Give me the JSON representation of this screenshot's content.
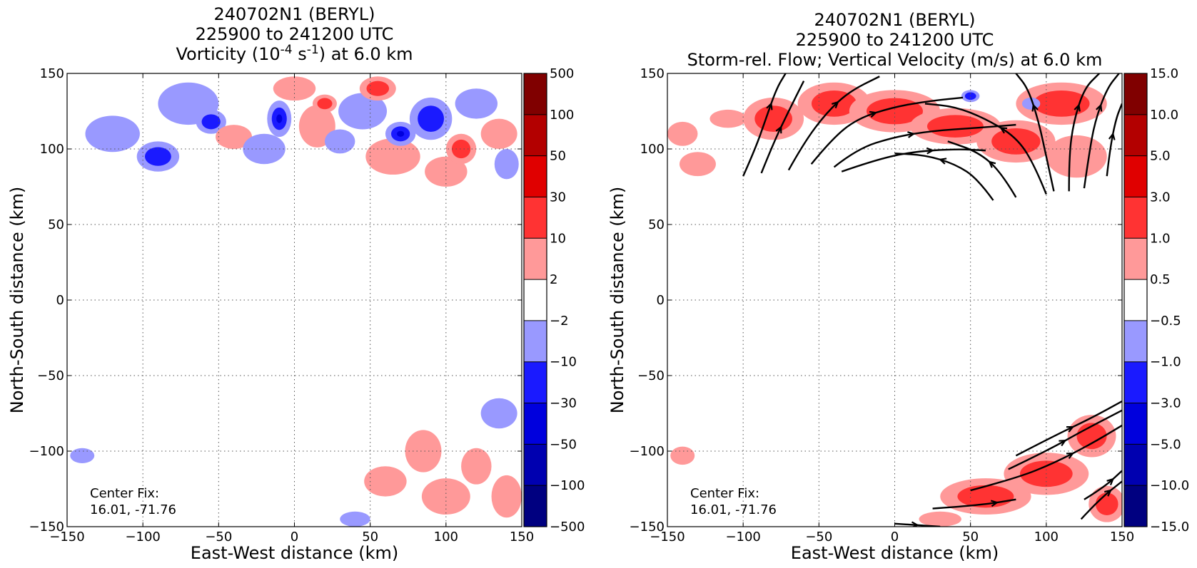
{
  "chart_data": [
    {
      "type": "heatmap",
      "title_lines": [
        "240702N1 (BERYL)",
        "225900 to 241200 UTC"
      ],
      "title_main": "Vorticity (10",
      "title_sup1": "-4",
      "title_mid": " s",
      "title_sup2": "-1",
      "title_tail": ") at 6.0 km",
      "xlabel": "East-West distance (km)",
      "ylabel": "North-South distance (km)",
      "xlim": [
        -150,
        150
      ],
      "ylim": [
        -150,
        150
      ],
      "x_ticks": [
        -150,
        -100,
        -50,
        0,
        50,
        100,
        150
      ],
      "y_ticks": [
        -150,
        -100,
        -50,
        0,
        50,
        100,
        150
      ],
      "x_tick_labels": [
        "−150",
        "−100",
        "−50",
        "0",
        "50",
        "100",
        "150"
      ],
      "y_tick_labels": [
        "−150",
        "−100",
        "−50",
        "0",
        "50",
        "100",
        "150"
      ],
      "grid": true,
      "annotation": [
        "Center Fix:",
        "16.01, -71.76"
      ],
      "colorbar_levels": [
        "−500",
        "−100",
        "−50",
        "−30",
        "−10",
        "−2",
        "2",
        "10",
        "30",
        "50",
        "100",
        "500"
      ],
      "colorbar_colors": [
        "#000080",
        "#0000b0",
        "#0000dd",
        "#1a1aff",
        "#9999ff",
        "#ffffff",
        "#ff9999",
        "#ff3333",
        "#e00000",
        "#b30000",
        "#800000"
      ],
      "blobs": [
        {
          "x": -120,
          "y": 110,
          "rx": 18,
          "ry": 12,
          "sign": -1,
          "level": 1
        },
        {
          "x": -90,
          "y": 95,
          "rx": 14,
          "ry": 10,
          "sign": -1,
          "level": 2
        },
        {
          "x": -70,
          "y": 130,
          "rx": 20,
          "ry": 14,
          "sign": -1,
          "level": 1
        },
        {
          "x": -55,
          "y": 118,
          "rx": 10,
          "ry": 8,
          "sign": -1,
          "level": 2
        },
        {
          "x": -40,
          "y": 108,
          "rx": 12,
          "ry": 8,
          "sign": 1,
          "level": 1
        },
        {
          "x": -20,
          "y": 100,
          "rx": 14,
          "ry": 10,
          "sign": -1,
          "level": 1
        },
        {
          "x": -10,
          "y": 120,
          "rx": 8,
          "ry": 12,
          "sign": -1,
          "level": 3
        },
        {
          "x": 0,
          "y": 140,
          "rx": 14,
          "ry": 8,
          "sign": 1,
          "level": 1
        },
        {
          "x": 15,
          "y": 115,
          "rx": 12,
          "ry": 14,
          "sign": 1,
          "level": 1
        },
        {
          "x": 20,
          "y": 130,
          "rx": 8,
          "ry": 6,
          "sign": 1,
          "level": 2
        },
        {
          "x": 30,
          "y": 105,
          "rx": 10,
          "ry": 8,
          "sign": -1,
          "level": 1
        },
        {
          "x": 45,
          "y": 125,
          "rx": 16,
          "ry": 12,
          "sign": -1,
          "level": 1
        },
        {
          "x": 55,
          "y": 140,
          "rx": 12,
          "ry": 8,
          "sign": 1,
          "level": 2
        },
        {
          "x": 65,
          "y": 95,
          "rx": 18,
          "ry": 12,
          "sign": 1,
          "level": 1
        },
        {
          "x": 70,
          "y": 110,
          "rx": 10,
          "ry": 8,
          "sign": -1,
          "level": 3
        },
        {
          "x": 90,
          "y": 120,
          "rx": 14,
          "ry": 14,
          "sign": -1,
          "level": 2
        },
        {
          "x": 100,
          "y": 85,
          "rx": 14,
          "ry": 10,
          "sign": 1,
          "level": 1
        },
        {
          "x": 110,
          "y": 100,
          "rx": 10,
          "ry": 10,
          "sign": 1,
          "level": 2
        },
        {
          "x": 120,
          "y": 130,
          "rx": 14,
          "ry": 10,
          "sign": -1,
          "level": 1
        },
        {
          "x": 135,
          "y": 110,
          "rx": 12,
          "ry": 10,
          "sign": 1,
          "level": 1
        },
        {
          "x": 140,
          "y": 90,
          "rx": 8,
          "ry": 10,
          "sign": -1,
          "level": 1
        },
        {
          "x": -140,
          "y": -103,
          "rx": 8,
          "ry": 5,
          "sign": -1,
          "level": 1
        },
        {
          "x": 60,
          "y": -120,
          "rx": 14,
          "ry": 10,
          "sign": 1,
          "level": 1
        },
        {
          "x": 85,
          "y": -100,
          "rx": 12,
          "ry": 14,
          "sign": 1,
          "level": 1
        },
        {
          "x": 100,
          "y": -130,
          "rx": 16,
          "ry": 12,
          "sign": 1,
          "level": 1
        },
        {
          "x": 120,
          "y": -110,
          "rx": 10,
          "ry": 12,
          "sign": 1,
          "level": 1
        },
        {
          "x": 135,
          "y": -75,
          "rx": 12,
          "ry": 10,
          "sign": -1,
          "level": 1
        },
        {
          "x": 140,
          "y": -130,
          "rx": 10,
          "ry": 14,
          "sign": 1,
          "level": 1
        },
        {
          "x": 40,
          "y": -145,
          "rx": 10,
          "ry": 5,
          "sign": -1,
          "level": 1
        }
      ]
    },
    {
      "type": "heatmap",
      "title_lines": [
        "240702N1 (BERYL)",
        "225900 to 241200 UTC",
        "Storm-rel. Flow; Vertical Velocity (m/s) at 6.0 km"
      ],
      "xlabel": "East-West distance (km)",
      "ylabel": "North-South distance (km)",
      "xlim": [
        -150,
        150
      ],
      "ylim": [
        -150,
        150
      ],
      "x_ticks": [
        -150,
        -100,
        -50,
        0,
        50,
        100,
        150
      ],
      "y_ticks": [
        -150,
        -100,
        -50,
        0,
        50,
        100,
        150
      ],
      "x_tick_labels": [
        "−150",
        "−100",
        "−50",
        "0",
        "50",
        "100",
        "150"
      ],
      "y_tick_labels": [
        "−150",
        "−100",
        "−50",
        "0",
        "50",
        "100",
        "150"
      ],
      "grid": true,
      "annotation": [
        "Center Fix:",
        "16.01, -71.76"
      ],
      "colorbar_levels": [
        "−15.0",
        "−10.0",
        "−5.0",
        "−3.0",
        "−1.0",
        "−0.5",
        "0.5",
        "1.0",
        "3.0",
        "5.0",
        "10.0",
        "15.0"
      ],
      "colorbar_colors": [
        "#000080",
        "#0000b0",
        "#0000dd",
        "#1a1aff",
        "#9999ff",
        "#ffffff",
        "#ff9999",
        "#ff3333",
        "#e00000",
        "#b30000",
        "#800000"
      ],
      "blobs": [
        {
          "x": -140,
          "y": 110,
          "rx": 10,
          "ry": 8,
          "sign": 1,
          "level": 1
        },
        {
          "x": -110,
          "y": 120,
          "rx": 12,
          "ry": 6,
          "sign": 1,
          "level": 1
        },
        {
          "x": -80,
          "y": 120,
          "rx": 20,
          "ry": 14,
          "sign": 1,
          "level": 2
        },
        {
          "x": -40,
          "y": 130,
          "rx": 24,
          "ry": 14,
          "sign": 1,
          "level": 2
        },
        {
          "x": 0,
          "y": 125,
          "rx": 30,
          "ry": 14,
          "sign": 1,
          "level": 2
        },
        {
          "x": 40,
          "y": 115,
          "rx": 30,
          "ry": 12,
          "sign": 1,
          "level": 2
        },
        {
          "x": 80,
          "y": 105,
          "rx": 26,
          "ry": 14,
          "sign": 1,
          "level": 2
        },
        {
          "x": 110,
          "y": 130,
          "rx": 30,
          "ry": 14,
          "sign": 1,
          "level": 2
        },
        {
          "x": 120,
          "y": 95,
          "rx": 20,
          "ry": 14,
          "sign": 1,
          "level": 1
        },
        {
          "x": -130,
          "y": 90,
          "rx": 12,
          "ry": 8,
          "sign": 1,
          "level": 1
        },
        {
          "x": 50,
          "y": 135,
          "rx": 6,
          "ry": 4,
          "sign": -1,
          "level": 2
        },
        {
          "x": 90,
          "y": 130,
          "rx": 6,
          "ry": 4,
          "sign": -1,
          "level": 1
        },
        {
          "x": -140,
          "y": -103,
          "rx": 8,
          "ry": 6,
          "sign": 1,
          "level": 1
        },
        {
          "x": 60,
          "y": -130,
          "rx": 30,
          "ry": 12,
          "sign": 1,
          "level": 2
        },
        {
          "x": 100,
          "y": -115,
          "rx": 28,
          "ry": 14,
          "sign": 1,
          "level": 2
        },
        {
          "x": 130,
          "y": -90,
          "rx": 16,
          "ry": 14,
          "sign": 1,
          "level": 2
        },
        {
          "x": 140,
          "y": -135,
          "rx": 12,
          "ry": 12,
          "sign": 1,
          "level": 2
        },
        {
          "x": 30,
          "y": -145,
          "rx": 14,
          "ry": 5,
          "sign": 1,
          "level": 1
        }
      ],
      "streamlines": [
        [
          [
            -100,
            82
          ],
          [
            -92,
            100
          ],
          [
            -85,
            120
          ],
          [
            -78,
            140
          ],
          [
            -72,
            150
          ]
        ],
        [
          [
            -88,
            84
          ],
          [
            -80,
            104
          ],
          [
            -70,
            125
          ],
          [
            -60,
            145
          ]
        ],
        [
          [
            -70,
            86
          ],
          [
            -60,
            104
          ],
          [
            -45,
            124
          ],
          [
            -30,
            138
          ],
          [
            -10,
            148
          ]
        ],
        [
          [
            -55,
            90
          ],
          [
            -42,
            106
          ],
          [
            -25,
            120
          ],
          [
            0,
            128
          ],
          [
            25,
            132
          ],
          [
            45,
            134
          ]
        ],
        [
          [
            -40,
            88
          ],
          [
            -25,
            100
          ],
          [
            0,
            108
          ],
          [
            25,
            112
          ],
          [
            55,
            114
          ],
          [
            80,
            116
          ]
        ],
        [
          [
            -35,
            85
          ],
          [
            -15,
            92
          ],
          [
            10,
            98
          ],
          [
            40,
            100
          ],
          [
            60,
            99
          ]
        ],
        [
          [
            65,
            66
          ],
          [
            55,
            80
          ],
          [
            40,
            90
          ],
          [
            20,
            96
          ],
          [
            0,
            97
          ]
        ],
        [
          [
            80,
            68
          ],
          [
            70,
            85
          ],
          [
            55,
            98
          ],
          [
            35,
            105
          ]
        ],
        [
          [
            100,
            70
          ],
          [
            92,
            90
          ],
          [
            80,
            108
          ],
          [
            60,
            120
          ],
          [
            40,
            128
          ],
          [
            20,
            130
          ]
        ],
        [
          [
            105,
            72
          ],
          [
            100,
            95
          ],
          [
            95,
            118
          ],
          [
            88,
            140
          ],
          [
            80,
            150
          ]
        ],
        [
          [
            115,
            72
          ],
          [
            115,
            95
          ],
          [
            118,
            118
          ],
          [
            125,
            140
          ],
          [
            135,
            150
          ]
        ],
        [
          [
            125,
            74
          ],
          [
            128,
            95
          ],
          [
            132,
            118
          ],
          [
            140,
            140
          ],
          [
            148,
            150
          ]
        ],
        [
          [
            140,
            82
          ],
          [
            142,
            100
          ],
          [
            146,
            120
          ],
          [
            150,
            130
          ]
        ],
        [
          [
            0,
            -148
          ],
          [
            30,
            -150
          ]
        ],
        [
          [
            25,
            -138
          ],
          [
            55,
            -136
          ],
          [
            80,
            -132
          ]
        ],
        [
          [
            50,
            -126
          ],
          [
            80,
            -118
          ],
          [
            105,
            -108
          ],
          [
            130,
            -95
          ],
          [
            150,
            -83
          ]
        ],
        [
          [
            75,
            -112
          ],
          [
            100,
            -100
          ],
          [
            125,
            -86
          ],
          [
            150,
            -73
          ]
        ],
        [
          [
            80,
            -103
          ],
          [
            105,
            -90
          ],
          [
            130,
            -78
          ],
          [
            150,
            -67
          ]
        ],
        [
          [
            123,
            -145
          ],
          [
            135,
            -132
          ],
          [
            150,
            -120
          ]
        ],
        [
          [
            125,
            -132
          ],
          [
            138,
            -124
          ],
          [
            150,
            -113
          ]
        ]
      ]
    }
  ]
}
